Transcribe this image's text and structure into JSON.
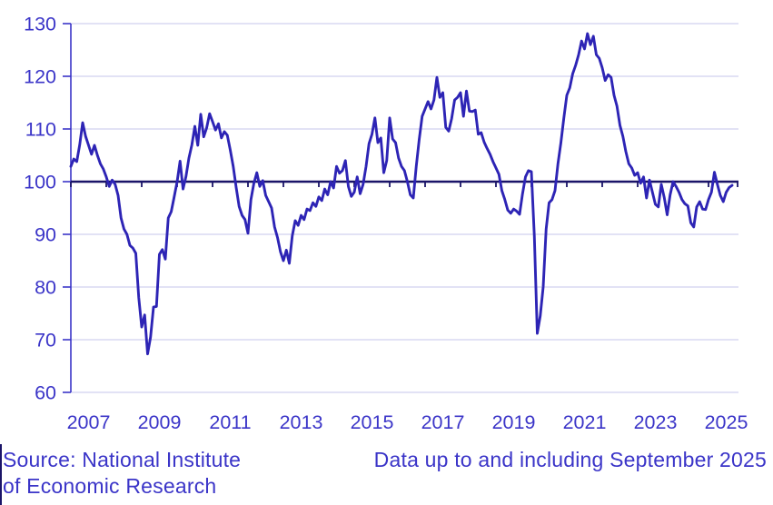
{
  "chart_data": {
    "type": "line",
    "title": "",
    "x_start": "2007-01",
    "x_end": "2025-09",
    "frequency": "monthly",
    "ylim": [
      60,
      130
    ],
    "y_ticks": [
      60,
      70,
      80,
      90,
      100,
      110,
      120,
      130
    ],
    "y_tick_labels": [
      "60",
      "70",
      "80",
      "90",
      "100",
      "110",
      "120",
      "130"
    ],
    "baseline": 100,
    "grid": "horizontal",
    "x_tick_years": [
      2007,
      2008,
      2009,
      2010,
      2011,
      2012,
      2013,
      2014,
      2015,
      2016,
      2017,
      2018,
      2019,
      2020,
      2021,
      2022,
      2023,
      2024,
      2025
    ],
    "x_tick_labels": [
      "2007",
      "2009",
      "2011",
      "2013",
      "2015",
      "2017",
      "2019",
      "2021",
      "2023",
      "2025"
    ],
    "x_label_years": [
      2007,
      2009,
      2011,
      2013,
      2015,
      2017,
      2019,
      2021,
      2023,
      2025
    ],
    "series": [
      {
        "values": [
          102.9,
          104.3,
          103.8,
          107.0,
          111.2,
          108.6,
          106.9,
          105.2,
          106.9,
          105.0,
          103.4,
          102.4,
          100.9,
          99.1,
          100.3,
          99.5,
          97.4,
          93.1,
          91.0,
          90.0,
          87.9,
          87.4,
          86.4,
          78.0,
          72.4,
          74.7,
          67.3,
          70.5,
          76.2,
          76.3,
          86.2,
          87.1,
          85.3,
          93.1,
          94.3,
          97.1,
          100.0,
          103.9,
          98.6,
          101.0,
          104.5,
          107.0,
          110.5,
          106.9,
          112.8,
          108.5,
          110.2,
          112.9,
          111.4,
          109.8,
          111.0,
          108.3,
          109.5,
          108.8,
          106.0,
          102.9,
          98.9,
          95.3,
          93.6,
          92.8,
          90.2,
          96.6,
          99.7,
          101.7,
          99.1,
          100.2,
          97.4,
          96.2,
          95.0,
          91.4,
          89.4,
          86.7,
          85.0,
          87.0,
          84.5,
          89.7,
          92.6,
          91.7,
          93.6,
          92.8,
          94.8,
          94.5,
          96.0,
          95.3,
          97.1,
          96.4,
          98.6,
          97.5,
          100.0,
          98.8,
          102.9,
          101.6,
          102.1,
          104.0,
          99.1,
          97.2,
          98.0,
          100.9,
          97.7,
          99.5,
          102.9,
          107.2,
          109.0,
          112.1,
          107.4,
          108.3,
          101.7,
          104.0,
          112.1,
          108.1,
          107.4,
          104.5,
          102.9,
          102.1,
          100.0,
          97.5,
          96.9,
          102.9,
          108.0,
          112.4,
          113.8,
          115.2,
          113.8,
          115.5,
          119.8,
          116.0,
          116.9,
          110.3,
          109.6,
          112.0,
          115.5,
          116.0,
          116.9,
          112.4,
          117.2,
          113.4,
          113.3,
          113.6,
          109.0,
          109.3,
          107.5,
          106.3,
          105.2,
          103.8,
          102.6,
          101.4,
          98.3,
          96.6,
          94.6,
          94.0,
          94.8,
          94.4,
          93.8,
          97.7,
          100.9,
          102.1,
          101.9,
          89.7,
          71.2,
          74.5,
          80.0,
          91.0,
          96.0,
          96.6,
          98.3,
          103.4,
          107.4,
          112.1,
          116.4,
          117.8,
          120.5,
          122.1,
          124.1,
          126.7,
          125.2,
          128.1,
          126.0,
          127.6,
          124.1,
          123.4,
          121.6,
          119.2,
          120.3,
          119.8,
          116.4,
          114.3,
          110.7,
          108.6,
          105.7,
          103.4,
          102.6,
          101.2,
          101.7,
          99.7,
          100.9,
          96.9,
          100.3,
          98.0,
          95.7,
          95.2,
          99.5,
          97.0,
          93.7,
          97.5,
          100.0,
          99.1,
          98.0,
          96.6,
          95.8,
          95.4,
          92.2,
          91.4,
          95.2,
          96.2,
          94.8,
          94.7,
          96.6,
          98.0,
          101.8,
          99.5,
          97.4,
          96.2,
          98.0,
          98.9,
          99.3
        ]
      }
    ]
  },
  "footer": {
    "source_line1": "Source: National Institute",
    "source_line2": "of Economic Research",
    "data_note": "Data up to and including September 2025"
  },
  "colors": {
    "line": "#2d24b5",
    "baseline": "#1a1468",
    "grid": "#d9d9f2",
    "axis_text": "#3b35c8"
  }
}
